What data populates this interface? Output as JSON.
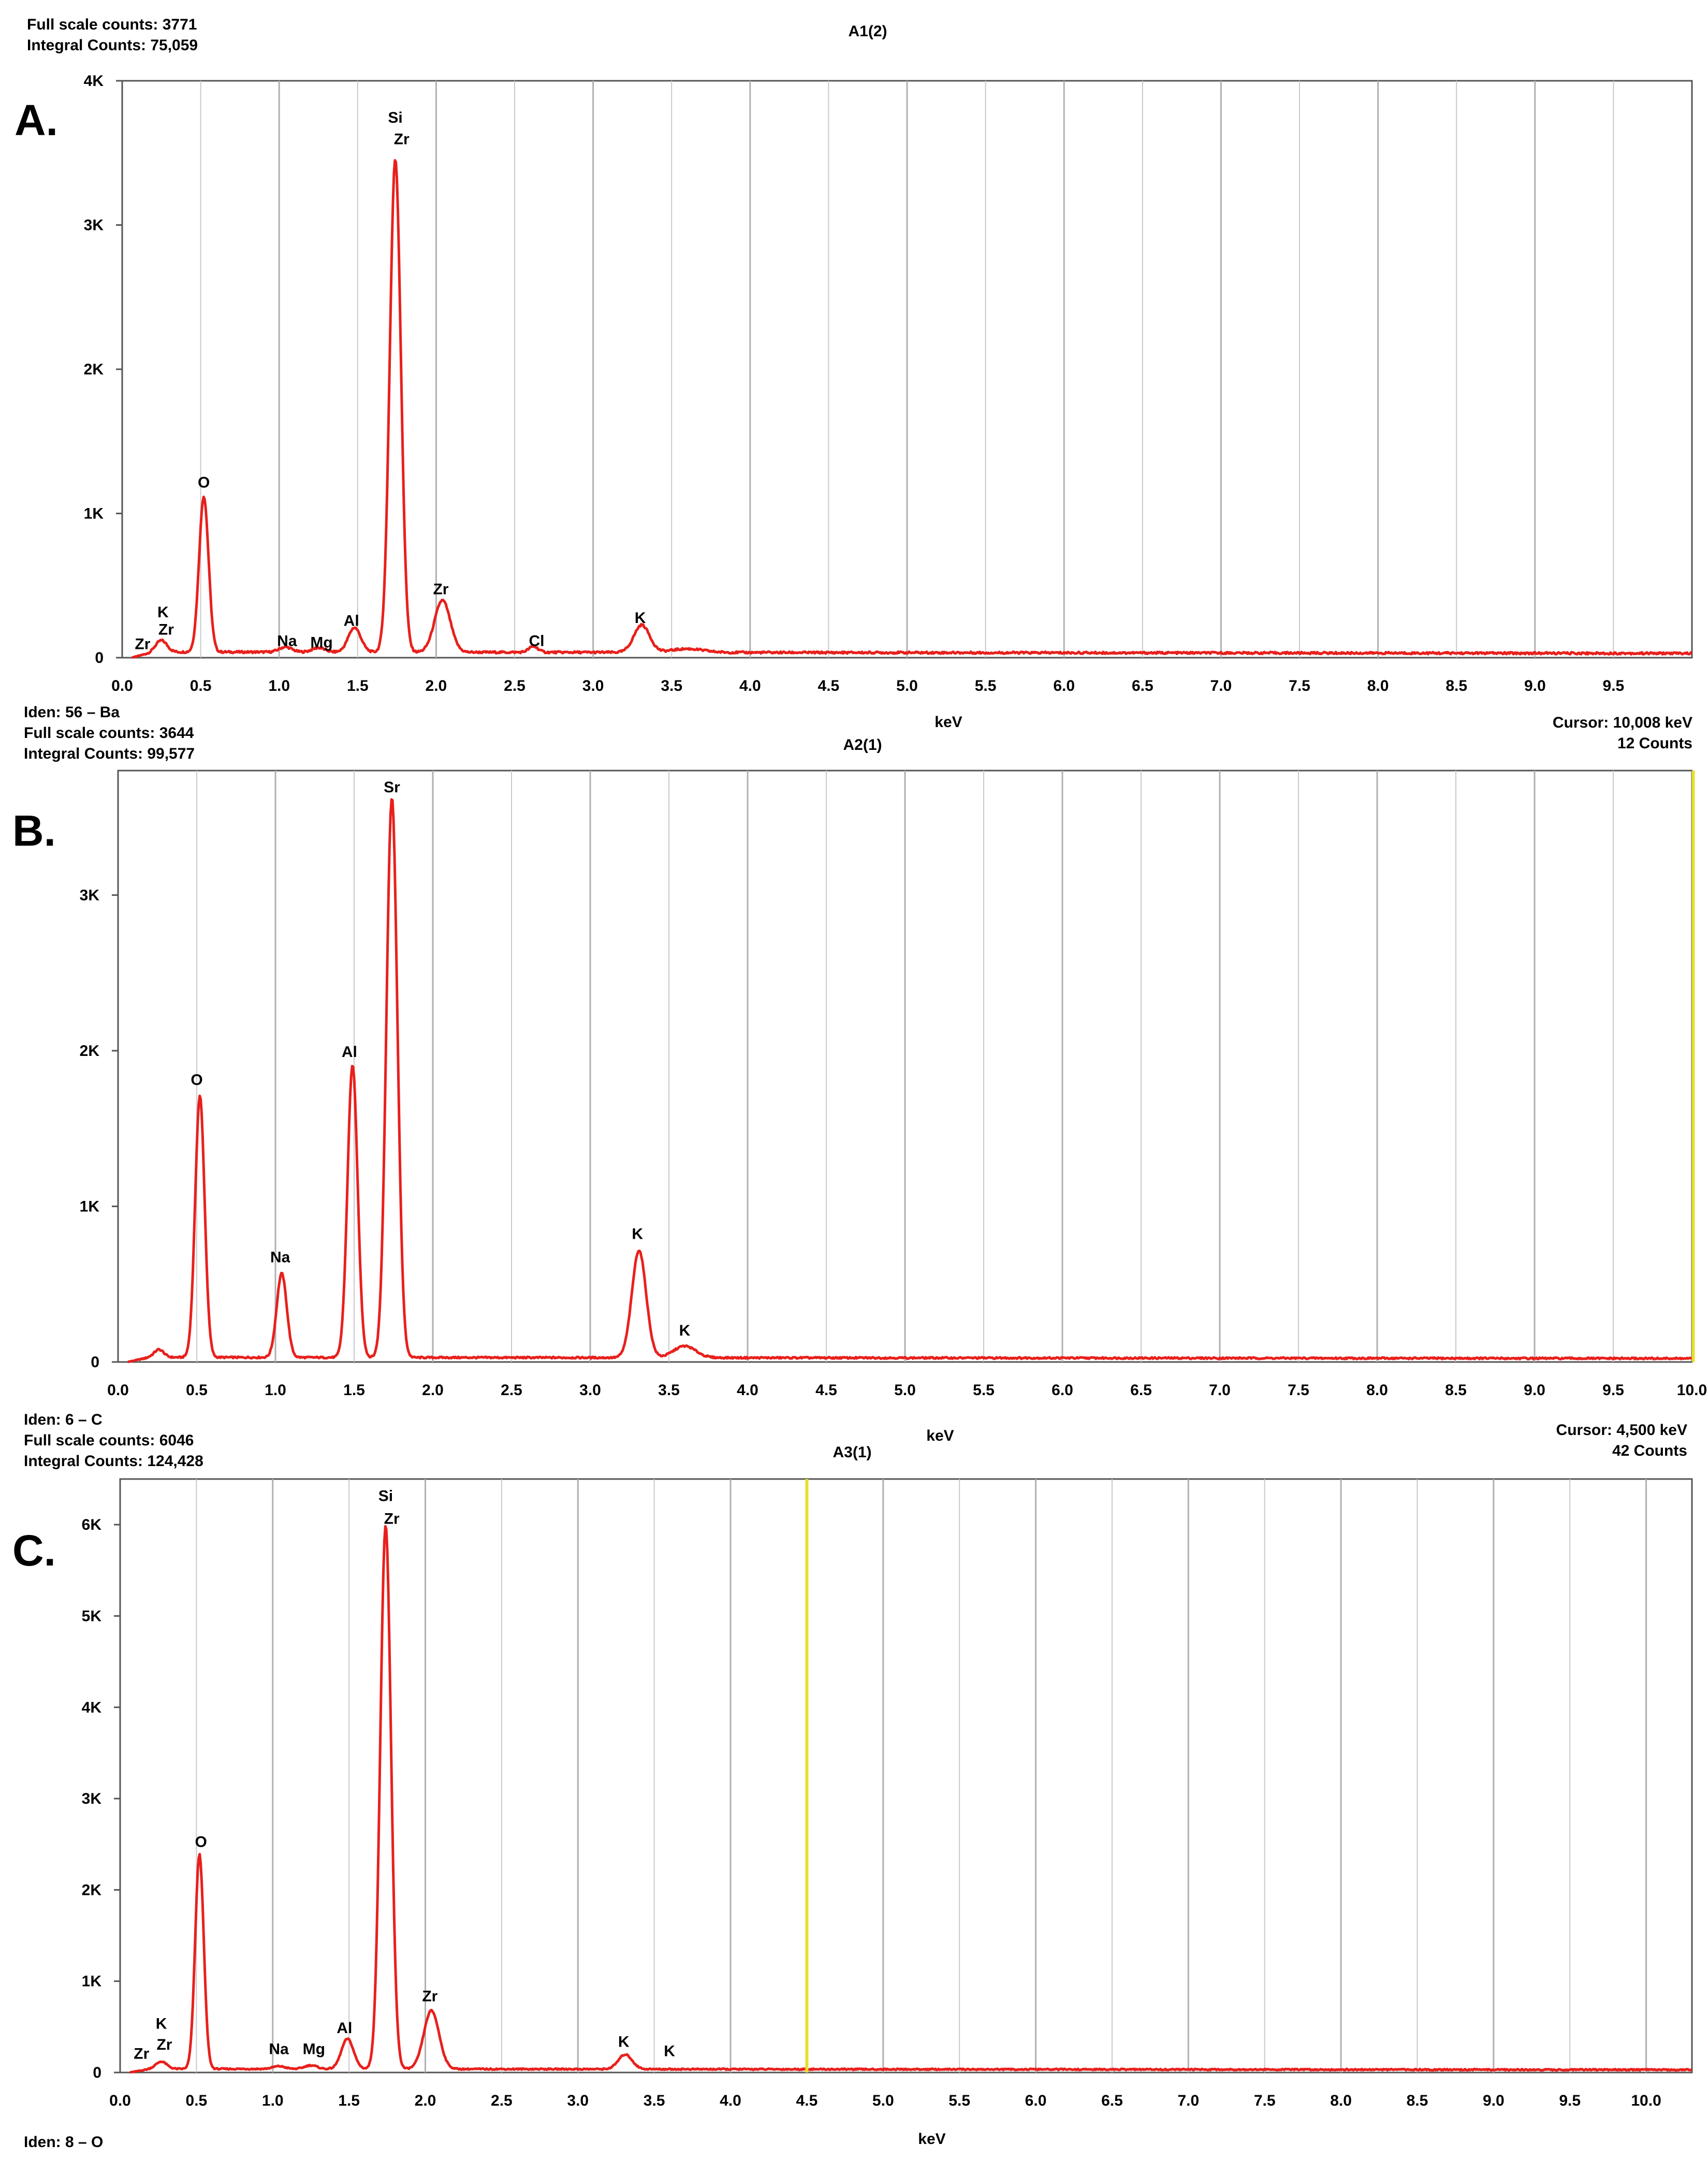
{
  "colors": {
    "spectrum": "#e8201c",
    "cursor": "#e8e02a",
    "grid": "#c9c9c9",
    "frame": "#555555"
  },
  "panels": [
    {
      "letter": "A.",
      "title": "A1(2)",
      "info": {
        "full_scale": "Full scale counts: 3771",
        "integral": "Integral Counts: 75,059"
      },
      "xlabel": "keV",
      "iden": "",
      "cursor": null
    },
    {
      "letter": "B.",
      "title": "A2(1)",
      "info": {
        "full_scale": "Full scale counts: 3644",
        "integral": "Integral Counts: 99,577"
      },
      "xlabel": "keV",
      "iden": "Iden: 56 – Ba",
      "cursor": {
        "text": "Cursor: 10,008 keV",
        "counts": "12 Counts"
      }
    },
    {
      "letter": "C.",
      "title": "A3(1)",
      "info": {
        "full_scale": "Full scale counts: 6046",
        "integral": "Integral Counts: 124,428"
      },
      "xlabel": "keV",
      "iden": "Iden: 6 – C",
      "cursor": {
        "text": "Cursor: 4,500 keV",
        "counts": "42 Counts"
      },
      "iden_bottom": "Iden: 8 – O"
    }
  ],
  "chart_data": [
    {
      "type": "line",
      "title": "A1(2)",
      "xlabel": "keV",
      "ylabel": "",
      "xlim": [
        0,
        10
      ],
      "ylim": [
        0,
        4000
      ],
      "x_ticks": [
        "0.0",
        "0.5",
        "1.0",
        "1.5",
        "2.0",
        "2.5",
        "3.0",
        "3.5",
        "4.0",
        "4.5",
        "5.0",
        "5.5",
        "6.0",
        "6.5",
        "7.0",
        "7.5",
        "8.0",
        "8.5",
        "9.0",
        "9.5"
      ],
      "y_ticks": [
        "0",
        "1K",
        "2K",
        "3K",
        "4K"
      ],
      "baseline": 40,
      "peaks": [
        {
          "x": 0.25,
          "y": 80,
          "w": 0.035
        },
        {
          "x": 0.52,
          "y": 1080,
          "w": 0.03
        },
        {
          "x": 1.04,
          "y": 35,
          "w": 0.04
        },
        {
          "x": 1.25,
          "y": 30,
          "w": 0.04
        },
        {
          "x": 1.48,
          "y": 170,
          "w": 0.04
        },
        {
          "x": 1.74,
          "y": 3420,
          "w": 0.035
        },
        {
          "x": 2.04,
          "y": 360,
          "w": 0.05
        },
        {
          "x": 2.62,
          "y": 40,
          "w": 0.03
        },
        {
          "x": 3.31,
          "y": 190,
          "w": 0.05
        },
        {
          "x": 3.6,
          "y": 25,
          "w": 0.1
        }
      ],
      "annotations": [
        {
          "label": "Zr",
          "x": 0.13,
          "y": 60
        },
        {
          "label": "K",
          "x": 0.26,
          "y": 280
        },
        {
          "label": "Zr",
          "x": 0.28,
          "y": 160
        },
        {
          "label": "O",
          "x": 0.52,
          "y": 1180
        },
        {
          "label": "Na",
          "x": 1.05,
          "y": 80
        },
        {
          "label": "Mg",
          "x": 1.27,
          "y": 70
        },
        {
          "label": "Al",
          "x": 1.46,
          "y": 220
        },
        {
          "label": "Si",
          "x": 1.74,
          "y": 3710
        },
        {
          "label": "Zr",
          "x": 1.78,
          "y": 3560
        },
        {
          "label": "Zr",
          "x": 2.03,
          "y": 440
        },
        {
          "label": "Cl",
          "x": 2.64,
          "y": 80
        },
        {
          "label": "K",
          "x": 3.3,
          "y": 240
        }
      ],
      "cursor_x": null
    },
    {
      "type": "line",
      "title": "A2(1)",
      "xlabel": "keV",
      "ylabel": "",
      "xlim": [
        0,
        10
      ],
      "ylim": [
        0,
        3800
      ],
      "x_ticks": [
        "0.0",
        "0.5",
        "1.0",
        "1.5",
        "2.0",
        "2.5",
        "3.0",
        "3.5",
        "4.0",
        "4.5",
        "5.0",
        "5.5",
        "6.0",
        "6.5",
        "7.0",
        "7.5",
        "8.0",
        "8.5",
        "9.0",
        "9.5",
        "10.0"
      ],
      "y_ticks": [
        "0",
        "1K",
        "2K",
        "3K"
      ],
      "baseline": 30,
      "peaks": [
        {
          "x": 0.26,
          "y": 50,
          "w": 0.03
        },
        {
          "x": 0.52,
          "y": 1680,
          "w": 0.03
        },
        {
          "x": 1.04,
          "y": 540,
          "w": 0.032
        },
        {
          "x": 1.49,
          "y": 1880,
          "w": 0.032
        },
        {
          "x": 1.74,
          "y": 3600,
          "w": 0.035
        },
        {
          "x": 3.31,
          "y": 690,
          "w": 0.045
        },
        {
          "x": 3.6,
          "y": 75,
          "w": 0.07
        }
      ],
      "annotations": [
        {
          "label": "Sr",
          "x": 1.74,
          "y": 3660
        },
        {
          "label": "O",
          "x": 0.5,
          "y": 1780
        },
        {
          "label": "Al",
          "x": 1.47,
          "y": 1960
        },
        {
          "label": "Na",
          "x": 1.03,
          "y": 640
        },
        {
          "label": "K",
          "x": 3.3,
          "y": 790
        },
        {
          "label": "K",
          "x": 3.6,
          "y": 170
        }
      ],
      "cursor_x": 10.008
    },
    {
      "type": "line",
      "title": "A3(1)",
      "xlabel": "keV",
      "ylabel": "",
      "xlim": [
        0,
        10.3
      ],
      "ylim": [
        0,
        6500
      ],
      "x_ticks": [
        "0.0",
        "0.5",
        "1.0",
        "1.5",
        "2.0",
        "2.5",
        "3.0",
        "3.5",
        "4.0",
        "4.5",
        "5.0",
        "5.5",
        "6.0",
        "6.5",
        "7.0",
        "7.5",
        "8.0",
        "8.5",
        "9.0",
        "9.5",
        "10.0"
      ],
      "y_ticks": [
        "0",
        "1K",
        "2K",
        "3K",
        "4K",
        "5K",
        "6K"
      ],
      "baseline": 40,
      "peaks": [
        {
          "x": 0.27,
          "y": 80,
          "w": 0.035
        },
        {
          "x": 0.52,
          "y": 2350,
          "w": 0.028
        },
        {
          "x": 1.04,
          "y": 30,
          "w": 0.04
        },
        {
          "x": 1.25,
          "y": 40,
          "w": 0.04
        },
        {
          "x": 1.49,
          "y": 330,
          "w": 0.04
        },
        {
          "x": 1.74,
          "y": 5950,
          "w": 0.035
        },
        {
          "x": 2.04,
          "y": 640,
          "w": 0.05
        },
        {
          "x": 3.31,
          "y": 160,
          "w": 0.045
        }
      ],
      "annotations": [
        {
          "label": "Si",
          "x": 1.74,
          "y": 6260
        },
        {
          "label": "Zr",
          "x": 1.78,
          "y": 6010
        },
        {
          "label": "O",
          "x": 0.53,
          "y": 2470
        },
        {
          "label": "Zr",
          "x": 2.03,
          "y": 780
        },
        {
          "label": "Al",
          "x": 1.47,
          "y": 430
        },
        {
          "label": "K",
          "x": 0.27,
          "y": 480
        },
        {
          "label": "Zr",
          "x": 0.14,
          "y": 150
        },
        {
          "label": "Zr",
          "x": 0.29,
          "y": 250
        },
        {
          "label": "Na",
          "x": 1.04,
          "y": 200
        },
        {
          "label": "Mg",
          "x": 1.27,
          "y": 200
        },
        {
          "label": "K",
          "x": 3.3,
          "y": 280
        },
        {
          "label": "K",
          "x": 3.6,
          "y": 180
        }
      ],
      "cursor_x": 4.5
    }
  ]
}
